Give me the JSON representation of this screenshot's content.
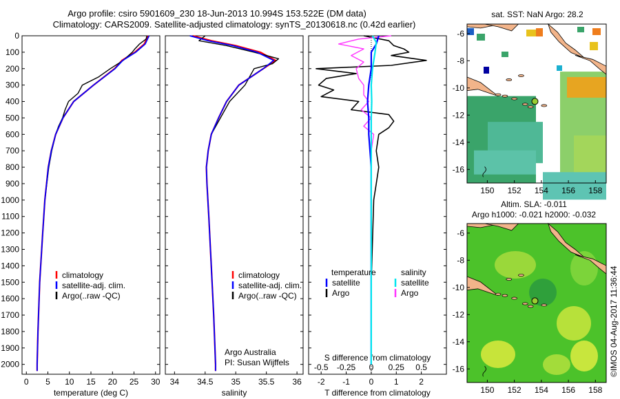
{
  "title": {
    "line1": "Argo profile: csiro 5901609_230 18-Jun-2013 10.994S 153.522E (DM data)",
    "line2": "Climatology: CARS2009. Satellite-adjusted climatology: synTS_20130618.nc (0.42d earlier)"
  },
  "stamp": "©IMOS 04-Aug-2017 11:36:44",
  "colors": {
    "climatology": "#ff0000",
    "satellite": "#0000ff",
    "argo": "#000000",
    "sal_satellite": "#00e5ee",
    "sal_argo": "#ff33ff",
    "land": "#f2b48a"
  },
  "chart_data": [
    {
      "type": "line",
      "name": "temperature",
      "xlabel": "temperature (deg C)",
      "xticks": [
        0,
        5,
        10,
        15,
        20,
        25,
        30
      ],
      "xlim": [
        -1,
        31
      ],
      "yticks": [
        0,
        100,
        200,
        300,
        400,
        500,
        600,
        700,
        800,
        900,
        1000,
        1100,
        1200,
        1300,
        1400,
        1500,
        1600,
        1700,
        1800,
        1900,
        2000
      ],
      "ylim": [
        2060,
        0
      ],
      "legend": [
        "climatology",
        "satellite-adj. clim.",
        "Argo(..raw -QC)"
      ],
      "series": [
        {
          "name": "climatology",
          "depth": [
            0,
            50,
            100,
            150,
            200,
            300,
            400,
            500,
            600,
            700,
            800,
            1000,
            1200,
            1500,
            1800,
            2000,
            2040
          ],
          "values": [
            28.3,
            27.4,
            25.2,
            22.2,
            20.5,
            15.6,
            11.0,
            8.5,
            6.8,
            5.8,
            5.1,
            4.3,
            3.8,
            3.1,
            2.7,
            2.5,
            2.5
          ]
        },
        {
          "name": "satellite-adj. clim.",
          "depth": [
            0,
            50,
            100,
            150,
            200,
            300,
            400,
            500,
            600,
            700,
            800,
            1000,
            1200,
            1500,
            1800,
            2000,
            2040
          ],
          "values": [
            28.5,
            27.6,
            25.4,
            22.4,
            20.6,
            15.6,
            11.0,
            8.5,
            6.8,
            5.8,
            5.1,
            4.3,
            3.8,
            3.1,
            2.7,
            2.5,
            2.5
          ]
        },
        {
          "name": "Argo(..raw -QC)",
          "depth": [
            0,
            20,
            50,
            80,
            100,
            150,
            200,
            250,
            300,
            350,
            400,
            450,
            500,
            550,
            600,
            700,
            800,
            1000,
            1200,
            1500,
            1800,
            2000
          ],
          "values": [
            28.0,
            27.8,
            26.3,
            25.2,
            24.6,
            22.5,
            19.5,
            16.8,
            13.0,
            12.0,
            9.8,
            9.0,
            8.4,
            7.5,
            6.8,
            5.9,
            5.2,
            4.3,
            3.8,
            3.1,
            2.7,
            2.5
          ]
        }
      ]
    },
    {
      "type": "line",
      "name": "salinity",
      "xlabel": "salinity",
      "xticks": [
        34,
        34.5,
        35,
        35.5,
        36
      ],
      "xlim": [
        33.85,
        36.1
      ],
      "yticks": [
        0,
        100,
        200,
        300,
        400,
        500,
        600,
        700,
        800,
        900,
        1000,
        1100,
        1200,
        1300,
        1400,
        1500,
        1600,
        1700,
        1800,
        1900,
        2000
      ],
      "ylim": [
        2060,
        0
      ],
      "legend": [
        "climatology",
        "satellite-adj. clim.",
        "Argo(..raw -QC)"
      ],
      "annotation": [
        "Argo Australia",
        "PI: Susan Wijffels"
      ],
      "series": [
        {
          "name": "climatology",
          "depth": [
            0,
            30,
            60,
            100,
            150,
            200,
            300,
            400,
            500,
            600,
            700,
            800,
            900,
            1100,
            1400,
            1700,
            2000,
            2040
          ],
          "values": [
            34.3,
            34.6,
            35.0,
            35.4,
            35.65,
            35.45,
            35.05,
            34.85,
            34.72,
            34.6,
            34.55,
            34.52,
            34.53,
            34.56,
            34.6,
            34.64,
            34.67,
            34.67
          ]
        },
        {
          "name": "satellite-adj. clim.",
          "depth": [
            0,
            30,
            60,
            100,
            150,
            200,
            300,
            400,
            500,
            600,
            700,
            800,
            900,
            1100,
            1400,
            1700,
            2000,
            2040
          ],
          "values": [
            34.25,
            34.55,
            34.95,
            35.35,
            35.62,
            35.45,
            35.05,
            34.85,
            34.72,
            34.6,
            34.55,
            34.52,
            34.53,
            34.56,
            34.6,
            34.64,
            34.67,
            34.67
          ]
        },
        {
          "name": "Argo(..raw -QC)",
          "depth": [
            0,
            30,
            60,
            100,
            140,
            170,
            200,
            300,
            400,
            500,
            600,
            700,
            800,
            900,
            1100,
            1400,
            1700,
            2000
          ],
          "values": [
            34.5,
            34.4,
            34.85,
            35.3,
            35.7,
            35.6,
            35.3,
            35.15,
            34.9,
            34.75,
            34.6,
            34.55,
            34.52,
            34.53,
            34.56,
            34.6,
            34.64,
            34.67
          ]
        }
      ]
    },
    {
      "type": "line",
      "name": "difference from climatology",
      "xlabel": "T difference from climatology",
      "xticks": [
        -2,
        -1,
        0,
        1,
        2
      ],
      "xlim": [
        -2.5,
        3.0
      ],
      "top_label": "S difference from climatology",
      "top_ticks": [
        "-0.5",
        "-0.25",
        "0",
        "0.25",
        "0.5"
      ],
      "top_tick_T_positions": [
        -2,
        -1,
        0,
        1,
        2
      ],
      "yticks": [
        0,
        100,
        200,
        300,
        400,
        500,
        600,
        700,
        800,
        900,
        1000,
        1100,
        1200,
        1300,
        1400,
        1500,
        1600,
        1700,
        1800,
        1900,
        2000
      ],
      "ylim": [
        2060,
        0
      ],
      "legend": {
        "temperature": [
          "satellite",
          "Argo"
        ],
        "salinity": [
          "satellite",
          "Argo"
        ]
      },
      "series": [
        {
          "name": "temperature satellite",
          "depth": [
            0,
            50,
            100,
            200,
            300,
            400,
            500,
            600,
            700,
            800,
            1000,
            1500,
            2000
          ],
          "values": [
            0.3,
            0.2,
            0.0,
            0.0,
            -0.1,
            -0.15,
            -0.1,
            -0.1,
            -0.05,
            0.0,
            0.0,
            0.0,
            0.0
          ]
        },
        {
          "name": "temperature Argo",
          "depth": [
            0,
            30,
            60,
            80,
            100,
            120,
            150,
            180,
            200,
            230,
            260,
            300,
            330,
            370,
            400,
            450,
            480,
            520,
            560,
            600,
            700,
            800,
            900,
            1000,
            1500,
            2000
          ],
          "values": [
            -0.3,
            0.7,
            0.9,
            1.3,
            1.5,
            0.8,
            2.2,
            0.8,
            -2.2,
            -0.6,
            -1.8,
            -2.1,
            -1.5,
            -2.0,
            -0.5,
            -0.8,
            0.7,
            0.9,
            0.7,
            0.3,
            0.2,
            0.3,
            0.2,
            0.1,
            0.0,
            0.0
          ]
        },
        {
          "name": "salinity satellite",
          "depth": [
            0,
            40,
            100,
            200,
            300,
            400,
            500,
            700,
            1000,
            1500,
            2000
          ],
          "values": [
            0.05,
            0.2,
            0.15,
            0.05,
            0.0,
            0.02,
            0.0,
            0.0,
            0.0,
            0.0,
            0.0
          ]
        },
        {
          "name": "salinity Argo",
          "depth": [
            0,
            20,
            50,
            80,
            120,
            160,
            200,
            260,
            300,
            360,
            400,
            450,
            500,
            550,
            600,
            700,
            800
          ],
          "values": [
            0.8,
            -0.5,
            -1.3,
            -0.3,
            -0.8,
            -0.3,
            -0.6,
            -0.5,
            -0.3,
            -0.3,
            -0.1,
            -0.4,
            0.0,
            -0.3,
            0.1,
            0.0,
            0.0
          ]
        }
      ]
    },
    {
      "type": "heatmap",
      "name": "SST map",
      "title": "sat. SST: NaN Argo: 28.2",
      "xticks": [
        150,
        152,
        154,
        156,
        158
      ],
      "yticks": [
        -6,
        -8,
        -10,
        -12,
        -14,
        -16
      ],
      "xlim": [
        148.5,
        158.8
      ],
      "ylim": [
        -17,
        -5.3
      ],
      "argo_position": {
        "lon": 153.522,
        "lat": -10.994
      }
    },
    {
      "type": "heatmap",
      "name": "SLA map",
      "title": [
        "Altim. SLA: -0.011",
        "Argo h1000: -0.021 h2000: -0.032"
      ],
      "xticks": [
        150,
        152,
        154,
        156,
        158
      ],
      "yticks": [
        -6,
        -8,
        -10,
        -12,
        -14,
        -16
      ],
      "xlim": [
        148.5,
        158.8
      ],
      "ylim": [
        -17,
        -5.3
      ],
      "argo_position": {
        "lon": 153.522,
        "lat": -10.994
      }
    }
  ]
}
